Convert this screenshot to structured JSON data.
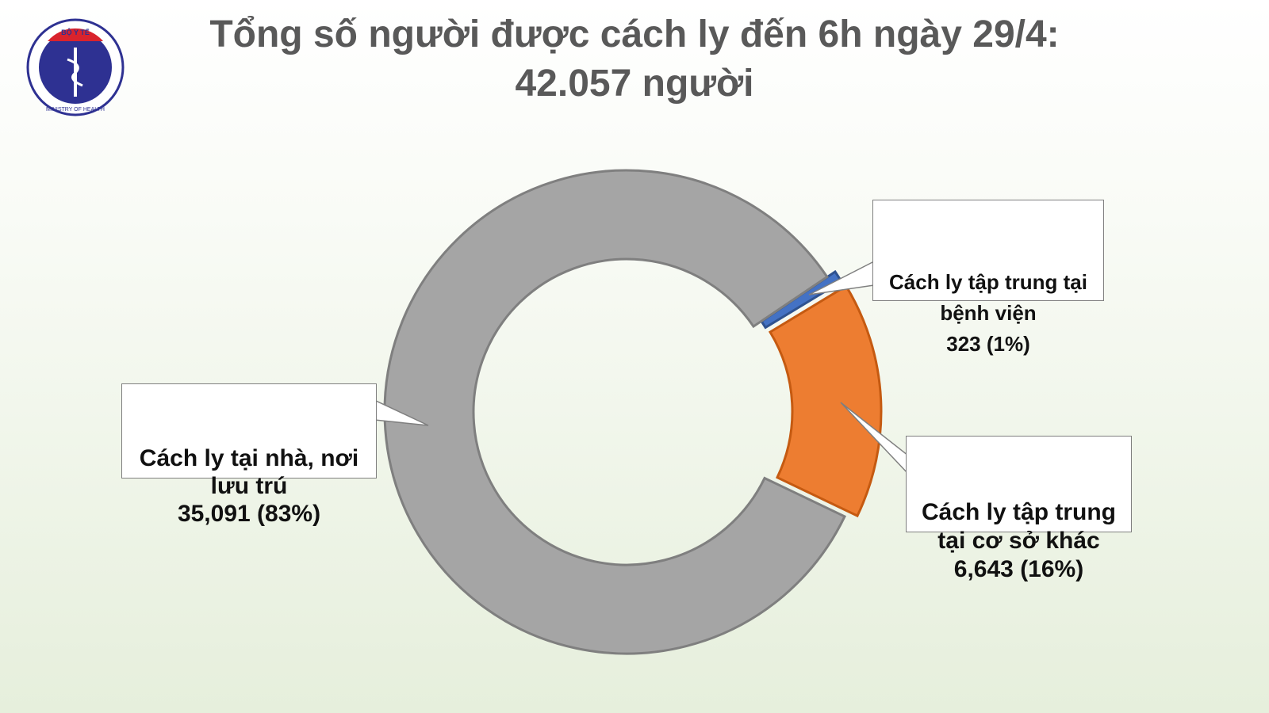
{
  "logo": {
    "top_text": "BỘ Y TẾ",
    "bottom_text": "MINISTRY OF HEALTH"
  },
  "chart_data": {
    "type": "donut",
    "title": "Tổng số người được cách ly đến 6h ngày 29/4:",
    "subtitle": "42.057 người",
    "categories": [
      "Cách ly tập trung tại bệnh viện",
      "Cách ly tập trung tại cơ sở khác",
      "Cách ly tại nhà, nơi lưu trú"
    ],
    "values": [
      323,
      6643,
      35091
    ],
    "value_labels": [
      "323  (1%)",
      "6,643  (16%)",
      "35,091 (83%)"
    ],
    "colors": [
      "#4472c4",
      "#ed7d31",
      "#a5a5a5"
    ]
  }
}
